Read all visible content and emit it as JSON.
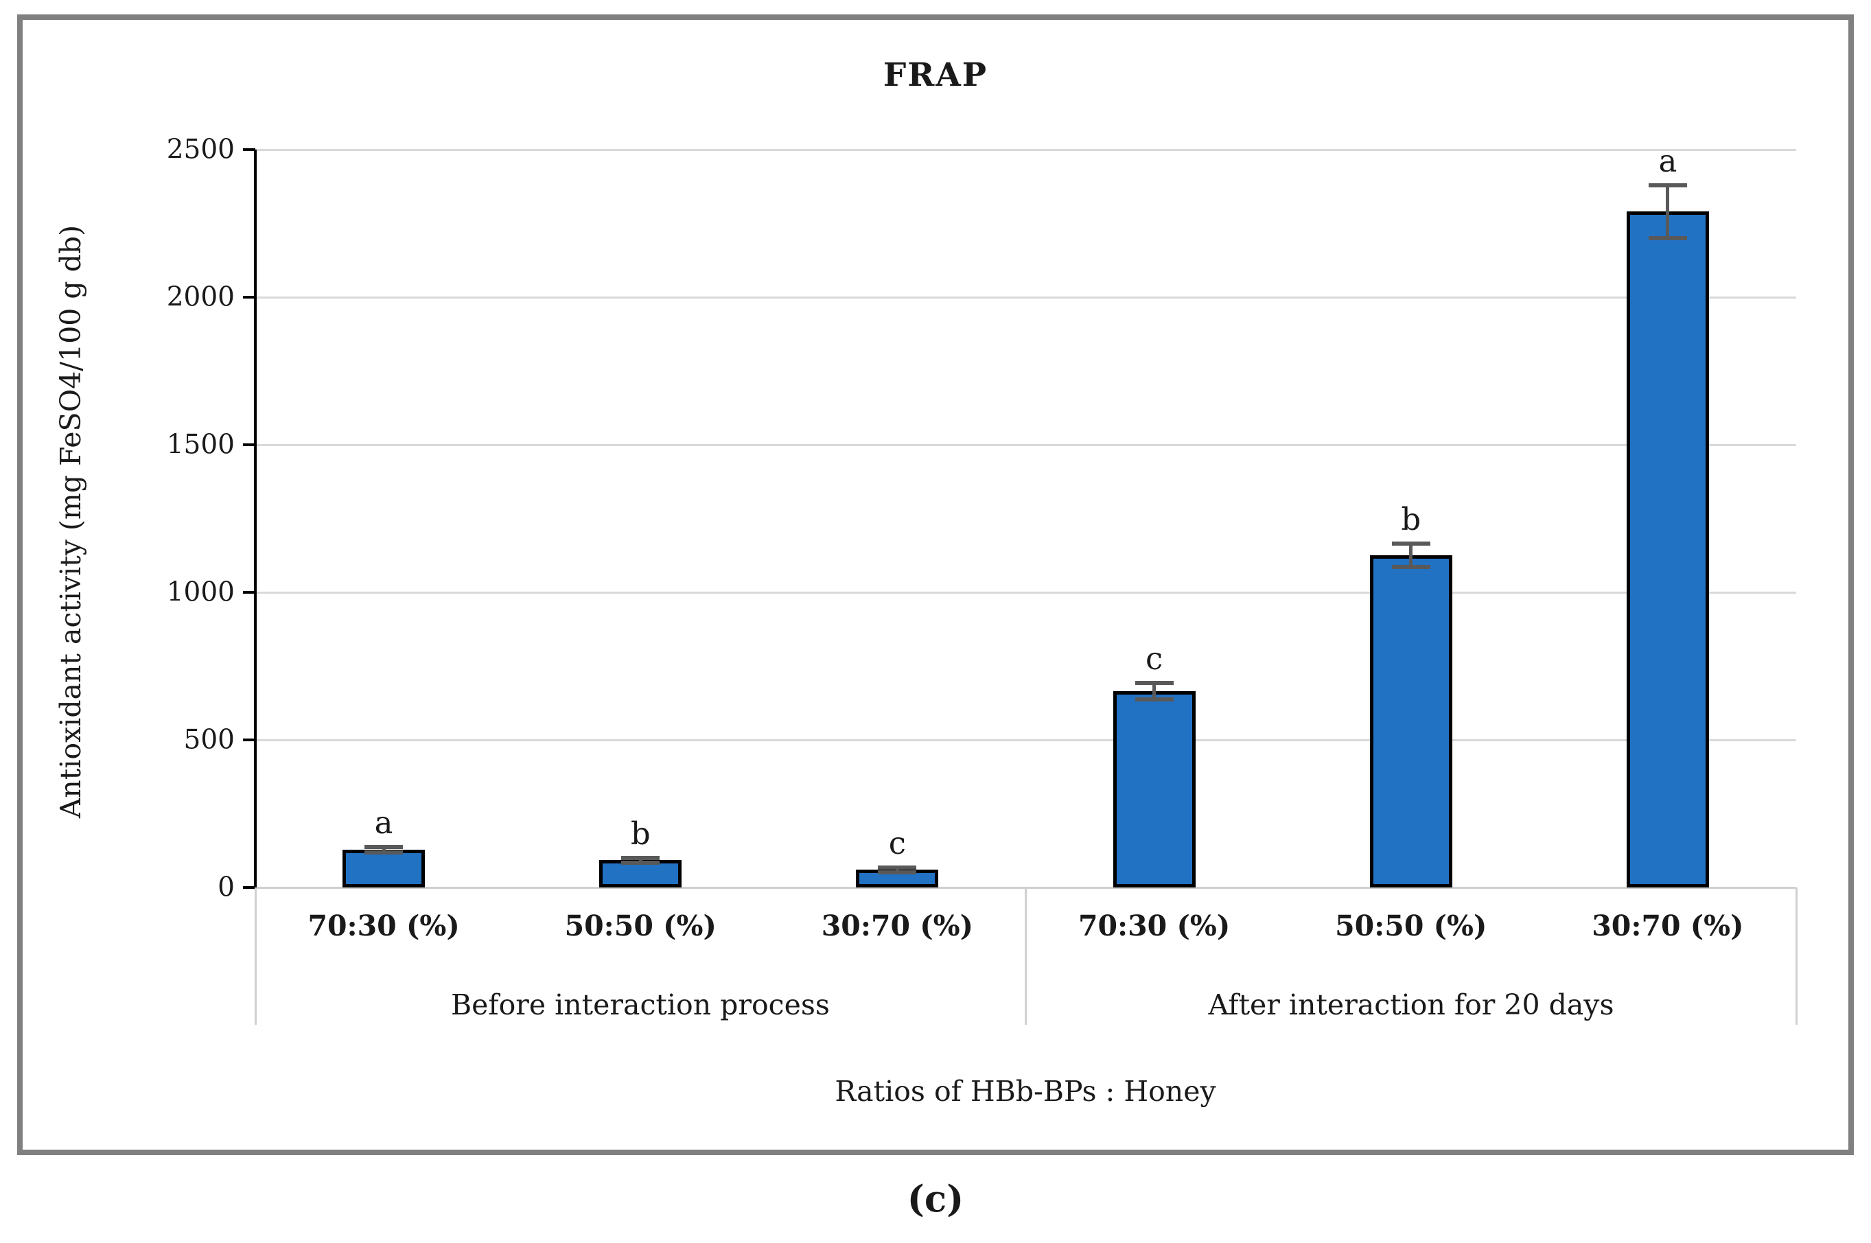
{
  "figure": {
    "caption": "(c)"
  },
  "chart_data": {
    "type": "bar",
    "title": "FRAP",
    "ylabel": "Antioxidant activity (mg FeSO4/100 g db)",
    "xlabel": "Ratios of HBb-BPs : Honey",
    "ylim": [
      0,
      2500
    ],
    "yticks": [
      0,
      500,
      1000,
      1500,
      2000,
      2500
    ],
    "grid": true,
    "legend_position": "none",
    "groups": [
      {
        "label": "Before interaction process",
        "bars": [
          {
            "category": "70:30 (%)",
            "value": 128,
            "error": 10,
            "sig": "a"
          },
          {
            "category": "50:50 (%)",
            "value": 92,
            "error": 8,
            "sig": "b"
          },
          {
            "category": "30:70 (%)",
            "value": 60,
            "error": 8,
            "sig": "c"
          }
        ]
      },
      {
        "label": "After interaction for 20 days",
        "bars": [
          {
            "category": "70:30 (%)",
            "value": 665,
            "error": 28,
            "sig": "c"
          },
          {
            "category": "50:50 (%)",
            "value": 1125,
            "error": 40,
            "sig": "b"
          },
          {
            "category": "30:70 (%)",
            "value": 2290,
            "error": 90,
            "sig": "a"
          }
        ]
      }
    ],
    "colors": {
      "bar_fill": "#2272C4",
      "bar_border": "#000000",
      "error_bar": "#595959",
      "gridline": "#D9D9D9",
      "axis_line": "#000000",
      "frame_border": "#808080"
    }
  }
}
